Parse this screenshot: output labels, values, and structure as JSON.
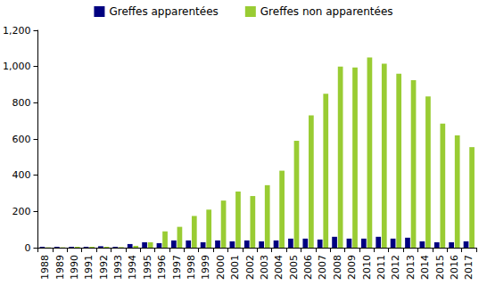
{
  "chart_data": {
    "type": "bar",
    "categories": [
      "1988",
      "1989",
      "1990",
      "1991",
      "1992",
      "1993",
      "1994",
      "1995",
      "1996",
      "1997",
      "1998",
      "1999",
      "2000",
      "2001",
      "2002",
      "2003",
      "2004",
      "2005",
      "2006",
      "2007",
      "2008",
      "2009",
      "2010",
      "2011",
      "2012",
      "2013",
      "2014",
      "2015",
      "2016",
      "2017"
    ],
    "series": [
      {
        "name": "Greffes apparentées",
        "color": "#000080",
        "values": [
          5,
          5,
          5,
          5,
          8,
          5,
          20,
          30,
          25,
          40,
          40,
          30,
          40,
          35,
          40,
          35,
          40,
          50,
          50,
          45,
          60,
          50,
          50,
          60,
          50,
          55,
          35,
          30,
          30,
          35
        ]
      },
      {
        "name": "Greffes non apparentées",
        "color": "#99cc33",
        "values": [
          2,
          2,
          5,
          5,
          5,
          3,
          10,
          30,
          90,
          115,
          175,
          210,
          260,
          310,
          285,
          345,
          425,
          590,
          730,
          850,
          1000,
          995,
          1050,
          1015,
          960,
          925,
          835,
          685,
          620,
          555
        ]
      }
    ],
    "ylim": [
      0,
      1200
    ],
    "yticks": [
      0,
      200,
      400,
      600,
      800,
      1000,
      1200
    ],
    "grid": false,
    "legend": "top"
  }
}
